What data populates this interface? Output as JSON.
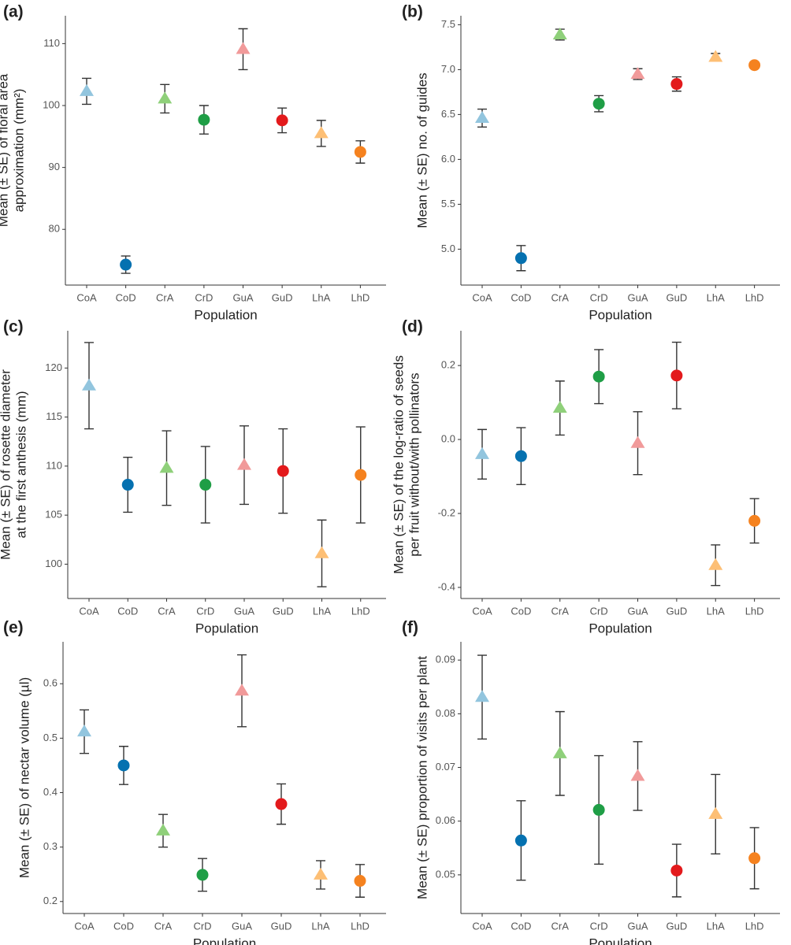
{
  "chart_data": [
    {
      "type": "errorbar",
      "panel": "(a)",
      "ylabel": [
        "Mean (± SE) of floral area",
        "approximation (mm²)"
      ],
      "xlabel": "Population",
      "categories": [
        "CoA",
        "CoD",
        "CrA",
        "CrD",
        "GuA",
        "GuD",
        "LhA",
        "LhD"
      ],
      "values": [
        102.3,
        74.3,
        101.1,
        97.7,
        109.1,
        97.6,
        95.5,
        92.5
      ],
      "errors": [
        2.1,
        1.4,
        2.3,
        2.3,
        3.3,
        2.0,
        2.1,
        1.8
      ],
      "colors": [
        "#92c5de",
        "#0571b0",
        "#8fd07a",
        "#1f9e46",
        "#f19a9a",
        "#e31a1c",
        "#fdbf75",
        "#f5821f"
      ],
      "markers": [
        "triangle",
        "circle",
        "triangle",
        "circle",
        "triangle",
        "circle",
        "triangle",
        "circle"
      ],
      "ylim": [
        71,
        114.5
      ],
      "yticks": [
        80,
        90,
        100,
        110
      ]
    },
    {
      "type": "errorbar",
      "panel": "(b)",
      "ylabel": [
        "Mean (± SE) no. of guides"
      ],
      "xlabel": "Population",
      "categories": [
        "CoA",
        "CoD",
        "CrA",
        "CrD",
        "GuA",
        "GuD",
        "LhA",
        "LhD"
      ],
      "values": [
        6.46,
        4.9,
        7.39,
        6.62,
        6.95,
        6.84,
        7.14,
        7.05
      ],
      "errors": [
        0.1,
        0.14,
        0.06,
        0.09,
        0.06,
        0.08,
        0.04,
        0.02
      ],
      "colors": [
        "#92c5de",
        "#0571b0",
        "#8fd07a",
        "#1f9e46",
        "#f19a9a",
        "#e31a1c",
        "#fdbf75",
        "#f5821f"
      ],
      "markers": [
        "triangle",
        "circle",
        "triangle",
        "circle",
        "triangle",
        "circle",
        "triangle",
        "circle"
      ],
      "ylim": [
        4.6,
        7.6
      ],
      "yticks": [
        {
          "value": 5,
          "label": "5.0"
        },
        5.5,
        {
          "value": 6,
          "label": "6.0"
        },
        6.5,
        {
          "value": 7,
          "label": "7.0"
        },
        7.5
      ]
    },
    {
      "type": "errorbar",
      "panel": "(c)",
      "ylabel": [
        "Mean (± SE) of rosette diameter",
        "at the first anthesis (mm)"
      ],
      "xlabel": "Population",
      "categories": [
        "CoA",
        "CoD",
        "CrA",
        "CrD",
        "GuA",
        "GuD",
        "LhA",
        "LhD"
      ],
      "values": [
        118.2,
        108.1,
        109.8,
        108.1,
        110.1,
        109.5,
        101.1,
        109.1
      ],
      "errors": [
        4.4,
        2.8,
        3.8,
        3.9,
        4.0,
        4.3,
        3.4,
        4.9
      ],
      "colors": [
        "#92c5de",
        "#0571b0",
        "#8fd07a",
        "#1f9e46",
        "#f19a9a",
        "#e31a1c",
        "#fdbf75",
        "#f5821f"
      ],
      "markers": [
        "triangle",
        "circle",
        "triangle",
        "circle",
        "triangle",
        "circle",
        "triangle",
        "circle"
      ],
      "ylim": [
        96.5,
        123.8
      ],
      "yticks": [
        100,
        105,
        110,
        115,
        120
      ]
    },
    {
      "type": "errorbar",
      "panel": "(d)",
      "ylabel": [
        "Mean (± SE) of the log-ratio of seeds",
        "per fruit without/with pollinators"
      ],
      "xlabel": "Population",
      "categories": [
        "CoA",
        "CoD",
        "CrA",
        "CrD",
        "GuA",
        "GuD",
        "LhA",
        "LhD"
      ],
      "values": [
        -0.04,
        -0.045,
        0.085,
        0.17,
        -0.01,
        0.173,
        -0.34,
        -0.22
      ],
      "errors": [
        0.067,
        0.077,
        0.073,
        0.073,
        0.085,
        0.09,
        0.055,
        0.06
      ],
      "colors": [
        "#92c5de",
        "#0571b0",
        "#8fd07a",
        "#1f9e46",
        "#f19a9a",
        "#e31a1c",
        "#fdbf75",
        "#f5821f"
      ],
      "markers": [
        "triangle",
        "circle",
        "triangle",
        "circle",
        "triangle",
        "circle",
        "triangle",
        "circle"
      ],
      "ylim": [
        -0.43,
        0.294
      ],
      "yticks": [
        -0.4,
        -0.2,
        {
          "value": 0,
          "label": "0.0"
        },
        0.2
      ]
    },
    {
      "type": "errorbar",
      "panel": "(e)",
      "ylabel": [
        "Mean (± SE) of nectar volume (µl)"
      ],
      "xlabel": "Population",
      "categories": [
        "CoA",
        "CoD",
        "CrA",
        "CrD",
        "GuA",
        "GuD",
        "LhA",
        "LhD"
      ],
      "values": [
        0.512,
        0.45,
        0.33,
        0.249,
        0.587,
        0.379,
        0.249,
        0.238
      ],
      "errors": [
        0.04,
        0.035,
        0.03,
        0.03,
        0.066,
        0.037,
        0.026,
        0.03
      ],
      "colors": [
        "#92c5de",
        "#0571b0",
        "#8fd07a",
        "#1f9e46",
        "#f19a9a",
        "#e31a1c",
        "#fdbf75",
        "#f5821f"
      ],
      "markers": [
        "triangle",
        "circle",
        "triangle",
        "circle",
        "triangle",
        "circle",
        "triangle",
        "circle"
      ],
      "ylim": [
        0.178,
        0.677
      ],
      "yticks": [
        0.2,
        0.3,
        0.4,
        0.5,
        0.6
      ]
    },
    {
      "type": "errorbar",
      "panel": "(f)",
      "ylabel": [
        "Mean (± SE) proportion of visits per plant"
      ],
      "xlabel": "Population",
      "categories": [
        "CoA",
        "CoD",
        "CrA",
        "CrD",
        "GuA",
        "GuD",
        "LhA",
        "LhD"
      ],
      "values": [
        0.0831,
        0.0564,
        0.0726,
        0.0621,
        0.0684,
        0.0508,
        0.0613,
        0.0531
      ],
      "errors": [
        0.0078,
        0.0074,
        0.0078,
        0.0101,
        0.0064,
        0.0049,
        0.0074,
        0.0057
      ],
      "colors": [
        "#92c5de",
        "#0571b0",
        "#8fd07a",
        "#1f9e46",
        "#f19a9a",
        "#e31a1c",
        "#fdbf75",
        "#f5821f"
      ],
      "markers": [
        "triangle",
        "circle",
        "triangle",
        "circle",
        "triangle",
        "circle",
        "triangle",
        "circle"
      ],
      "ylim": [
        0.0428,
        0.0934
      ],
      "yticks": [
        0.05,
        0.06,
        0.07,
        0.08,
        0.09
      ]
    }
  ]
}
